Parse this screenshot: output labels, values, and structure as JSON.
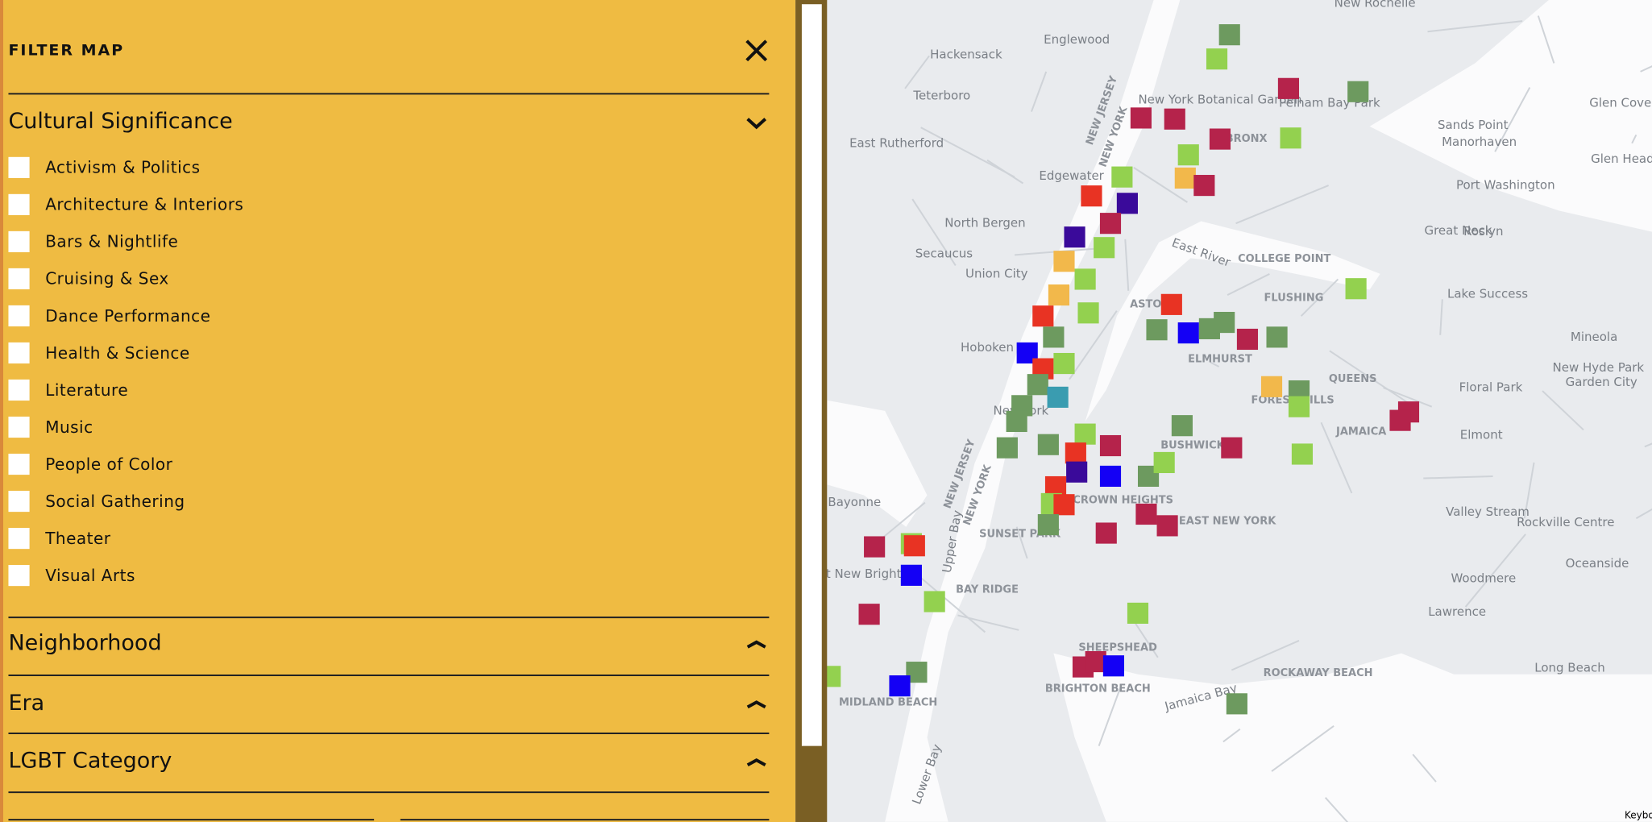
{
  "sidebar": {
    "title": "FILTER MAP",
    "sections": [
      {
        "label": "Cultural Significance",
        "options": [
          "Activism & Politics",
          "Architecture & Interiors",
          "Bars & Nightlife",
          "Cruising & Sex",
          "Dance Performance",
          "Health & Science",
          "Literature",
          "Music",
          "People of Color",
          "Social Gathering",
          "Theater",
          "Visual Arts"
        ]
      },
      {
        "label": "Neighborhood"
      },
      {
        "label": "Era"
      },
      {
        "label": "LGBT Category"
      }
    ]
  },
  "map": {
    "labels": [
      "Englewood",
      "Hackensack",
      "Teterboro",
      "East Rutherford",
      "Edgewater",
      "North Bergen",
      "Secaucus",
      "Union City",
      "Hoboken",
      "New York",
      "NEW JERSEY",
      "NEW YORK",
      "NEW JERSEY",
      "NEW YORK",
      "New York Botanical Garden",
      "BRONX",
      "Pelham Bay Park",
      "Glen Cove",
      "Sands Point",
      "Manorhaven",
      "Port Washington",
      "Glen Head",
      "Great Neck",
      "Roslyn",
      "COLLEGE POINT",
      "FLUSHING",
      "East River",
      "Lake Success",
      "Mineola",
      "ASTORIA",
      "ELMHURST",
      "QUEENS",
      "FOREST HILLS",
      "New Hyde Park",
      "Floral Park",
      "Garden City",
      "JAMAICA",
      "Elmont",
      "Valley Stream",
      "Rockville Centre",
      "BUSHWICK",
      "CROWN HEIGHTS",
      "EAST NEW YORK",
      "Bayonne",
      "SUNSET PARK",
      "West New Brighton",
      "BAY RIDGE",
      "Woodmere",
      "Oceanside",
      "Lawrence",
      "SHEEPSHEAD",
      "BRIGHTON BEACH",
      "ROCKAWAY BEACH",
      "Long Beach",
      "MIDLAND BEACH",
      "Jamaica Bay",
      "Upper Bay",
      "Lower Bay",
      "New Rochelle",
      "Keyboard shortcuts"
    ]
  }
}
